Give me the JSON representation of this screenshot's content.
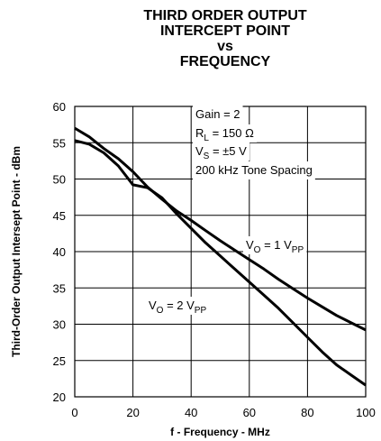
{
  "chart_data": {
    "type": "line",
    "title": [
      "THIRD ORDER OUTPUT",
      "INTERCEPT POINT",
      "vs",
      "FREQUENCY"
    ],
    "xlabel": "f - Frequency - MHz",
    "ylabel": "Third-Order Output Intersept Point - dBm",
    "x": [
      0,
      5,
      10,
      15,
      20,
      25,
      30,
      35,
      40,
      45,
      50,
      55,
      60,
      65,
      70,
      75,
      80,
      85,
      90,
      95,
      100
    ],
    "series": [
      {
        "name": [
          "V",
          "O",
          " = 1 V",
          "PP"
        ],
        "color": "#000000",
        "values": [
          57,
          55.8,
          54.2,
          52.8,
          51,
          48.9,
          47.2,
          45.6,
          44.3,
          42.9,
          41.5,
          40.2,
          38.9,
          37.6,
          36.2,
          34.9,
          33.6,
          32.4,
          31.2,
          30.2,
          29.2
        ]
      },
      {
        "name": [
          "V",
          "O",
          " = 2 V",
          "PP"
        ],
        "color": "#000000",
        "values": [
          55.3,
          54.8,
          53.6,
          51.8,
          49.2,
          48.8,
          47.4,
          45.2,
          43.2,
          41.2,
          39.4,
          37.6,
          35.8,
          34,
          32.2,
          30.2,
          28.2,
          26.2,
          24.4,
          23,
          21.6
        ]
      }
    ],
    "annotations": [
      [
        "Gain = 2"
      ],
      [
        "R",
        "L",
        " = 150 Ω"
      ],
      [
        "V",
        "S",
        " = ±5 V"
      ],
      [
        "200 kHz Tone Spacing"
      ]
    ],
    "xlim": [
      0,
      100
    ],
    "xticks": [
      0,
      20,
      40,
      60,
      80,
      100
    ],
    "ylim": [
      20,
      60
    ],
    "yticks": [
      20,
      25,
      30,
      35,
      40,
      45,
      50,
      55,
      60
    ],
    "grid": true
  }
}
